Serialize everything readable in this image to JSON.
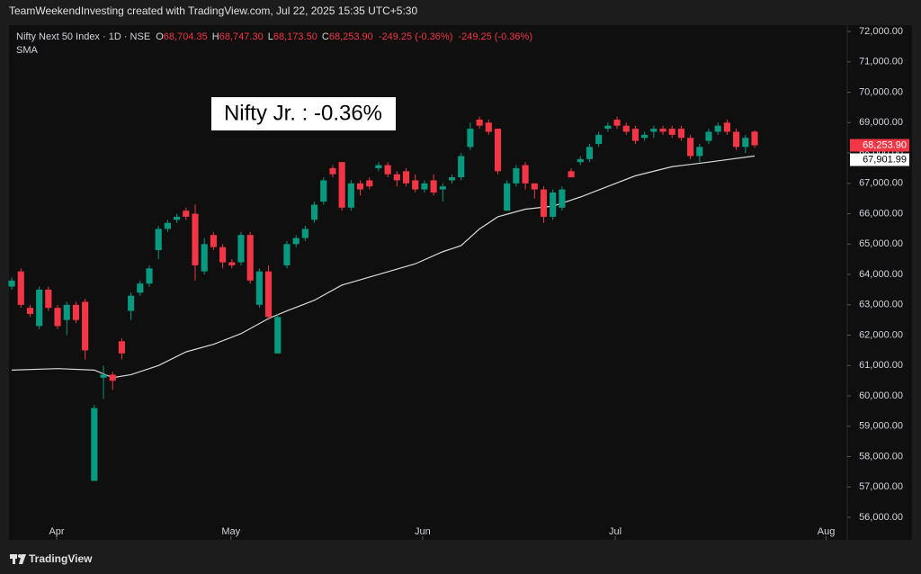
{
  "chart_data": {
    "type": "candlestick",
    "header": "TeamWeekendInvesting created with TradingView.com, Jul 22, 2025 15:35 UTC+5:30",
    "symbol": "Nifty Next 50 Index · 1D · NSE",
    "ohlc_legend": {
      "o_key": "O",
      "o": "68,704.35",
      "h_key": "H",
      "h": "68,747.30",
      "l_key": "L",
      "l": "68,173.50",
      "c_key": "C",
      "c": "68,253.90",
      "change": "-249.25 (-0.36%)",
      "change2": "-249.25 (-0.36%)"
    },
    "annotation": "Nifty Jr. : -0.36%",
    "footer": "TradingView",
    "up_color": "#089981",
    "down_color": "#f23645",
    "x": [
      0,
      1,
      2,
      3,
      4,
      5,
      6,
      7,
      8,
      9,
      10,
      11,
      12,
      13,
      14,
      15,
      16,
      17,
      18,
      19,
      20,
      21,
      22,
      23,
      24,
      25,
      26,
      27,
      28,
      29,
      30,
      31,
      32,
      33,
      34,
      35,
      36,
      37,
      38,
      39,
      40,
      41,
      42,
      43,
      44,
      45,
      46,
      47,
      48,
      49,
      50,
      51,
      52,
      53,
      54,
      55,
      56,
      57,
      58,
      59,
      60,
      61,
      62,
      63,
      64,
      65,
      66,
      67,
      68,
      69,
      70,
      71,
      72,
      73,
      74,
      75,
      76,
      77,
      78,
      79,
      80,
      81
    ],
    "open": [
      63600,
      64100,
      62900,
      62300,
      63500,
      62900,
      62500,
      63000,
      63100,
      57200,
      60600,
      60700,
      61800,
      62800,
      63400,
      63700,
      64800,
      65500,
      65800,
      66100,
      66000,
      64100,
      65300,
      64900,
      64400,
      64400,
      65300,
      63000,
      64100,
      61400,
      64300,
      65000,
      65200,
      65800,
      66400,
      67500,
      67700,
      66200,
      67000,
      67100,
      67500,
      67600,
      67300,
      67400,
      67100,
      66800,
      67100,
      66800,
      67100,
      67200,
      68200,
      69100,
      69000,
      68800,
      66100,
      67000,
      67600,
      67000,
      66800,
      65900,
      66200,
      67400,
      67700,
      67800,
      68300,
      68800,
      69100,
      68900,
      68800,
      68500,
      68700,
      68800,
      68800,
      68800,
      68500,
      67900,
      68400,
      68700,
      69000,
      68700,
      68200,
      68704.35
    ],
    "high": [
      63900,
      64200,
      63000,
      63600,
      63600,
      63000,
      63100,
      63100,
      63200,
      59700,
      61000,
      60800,
      61900,
      63400,
      63800,
      64300,
      65600,
      65800,
      66000,
      66200,
      66300,
      65200,
      65400,
      65000,
      64500,
      65400,
      65400,
      64200,
      64300,
      62700,
      65100,
      65300,
      65600,
      66400,
      67200,
      67600,
      67700,
      67100,
      67100,
      67200,
      67700,
      67700,
      67400,
      67500,
      67300,
      67100,
      67300,
      67000,
      67300,
      68000,
      69000,
      69200,
      69100,
      68800,
      67100,
      67600,
      67700,
      67000,
      66900,
      66800,
      66900,
      67500,
      67900,
      68300,
      68700,
      69000,
      69200,
      69000,
      68900,
      68700,
      68900,
      68900,
      68900,
      68900,
      68600,
      68300,
      68800,
      69000,
      69100,
      68800,
      68600,
      68747.3
    ],
    "low": [
      63500,
      62900,
      62600,
      62200,
      62800,
      62200,
      62000,
      62400,
      61200,
      57200,
      59900,
      60200,
      61200,
      62500,
      63300,
      63600,
      64500,
      65400,
      65700,
      65800,
      63800,
      64000,
      64800,
      64200,
      64200,
      64300,
      63700,
      62900,
      62500,
      61400,
      64200,
      64900,
      65100,
      65700,
      66300,
      67200,
      66100,
      66100,
      66600,
      66800,
      67400,
      67200,
      66900,
      66900,
      66700,
      66700,
      66600,
      66400,
      67000,
      67100,
      68100,
      68800,
      68600,
      67300,
      66100,
      66900,
      66800,
      66500,
      65700,
      65800,
      66100,
      67200,
      67600,
      67700,
      68200,
      68700,
      68800,
      68600,
      68300,
      68400,
      68500,
      68600,
      68500,
      68400,
      67800,
      67700,
      68300,
      68600,
      68600,
      68100,
      68000,
      68173.5
    ],
    "close": [
      63800,
      63000,
      62700,
      63500,
      62900,
      62300,
      63000,
      62500,
      61500,
      59600,
      60700,
      60500,
      61400,
      63300,
      63700,
      64200,
      65500,
      65700,
      65900,
      65900,
      64300,
      65000,
      64900,
      64400,
      64300,
      65300,
      63800,
      64100,
      62600,
      62600,
      65000,
      65200,
      65500,
      66300,
      67100,
      67300,
      66200,
      67000,
      66800,
      66900,
      67600,
      67300,
      67100,
      67000,
      66800,
      67000,
      66700,
      66900,
      67200,
      67900,
      68800,
      68900,
      68700,
      67400,
      67000,
      67500,
      67000,
      66800,
      65900,
      66700,
      66800,
      67200,
      67800,
      68200,
      68600,
      68900,
      68900,
      68700,
      68400,
      68600,
      68800,
      68700,
      68600,
      68500,
      67900,
      68200,
      68700,
      68900,
      68700,
      68200,
      68500,
      68253.9
    ],
    "last_price": {
      "value": 68253.9,
      "label": "68,253.90"
    },
    "sma": {
      "name": "SMA",
      "color": "#d9d9d9",
      "x": [
        0,
        5,
        9,
        11,
        13,
        16,
        19,
        22,
        25,
        28,
        30,
        33,
        36,
        40,
        44,
        47,
        49,
        51,
        53,
        56,
        59,
        62,
        65,
        68,
        72,
        76,
        81
      ],
      "values": [
        60850,
        60900,
        60850,
        60600,
        60700,
        61000,
        61450,
        61700,
        62050,
        62550,
        62800,
        63150,
        63650,
        64000,
        64350,
        64750,
        64950,
        65500,
        65900,
        66150,
        66250,
        66550,
        66900,
        67250,
        67550,
        67700,
        67901.99
      ],
      "last_label": "67,901.99"
    },
    "xlim": [
      -0.3,
      91.1
    ],
    "xticks": [
      {
        "value": 4.9,
        "label": "Apr"
      },
      {
        "value": 23.9,
        "label": "May"
      },
      {
        "value": 44.8,
        "label": "Jun"
      },
      {
        "value": 65.8,
        "label": "Jul"
      },
      {
        "value": 88.8,
        "label": "Aug"
      }
    ],
    "ylim": [
      55260,
      72210
    ],
    "yticks": [
      {
        "value": 56000,
        "label": "56,000.00"
      },
      {
        "value": 57000,
        "label": "57,000.00"
      },
      {
        "value": 58000,
        "label": "58,000.00"
      },
      {
        "value": 59000,
        "label": "59,000.00"
      },
      {
        "value": 60000,
        "label": "60,000.00"
      },
      {
        "value": 61000,
        "label": "61,000.00"
      },
      {
        "value": 62000,
        "label": "62,000.00"
      },
      {
        "value": 63000,
        "label": "63,000.00"
      },
      {
        "value": 64000,
        "label": "64,000.00"
      },
      {
        "value": 65000,
        "label": "65,000.00"
      },
      {
        "value": 66000,
        "label": "66,000.00"
      },
      {
        "value": 67000,
        "label": "67,000.00"
      },
      {
        "value": 68000,
        "label": "68,000.00"
      },
      {
        "value": 69000,
        "label": "69,000.00"
      },
      {
        "value": 70000,
        "label": "70,000.00"
      },
      {
        "value": 71000,
        "label": "71,000.00"
      },
      {
        "value": 72000,
        "label": "72,000.00"
      }
    ]
  }
}
